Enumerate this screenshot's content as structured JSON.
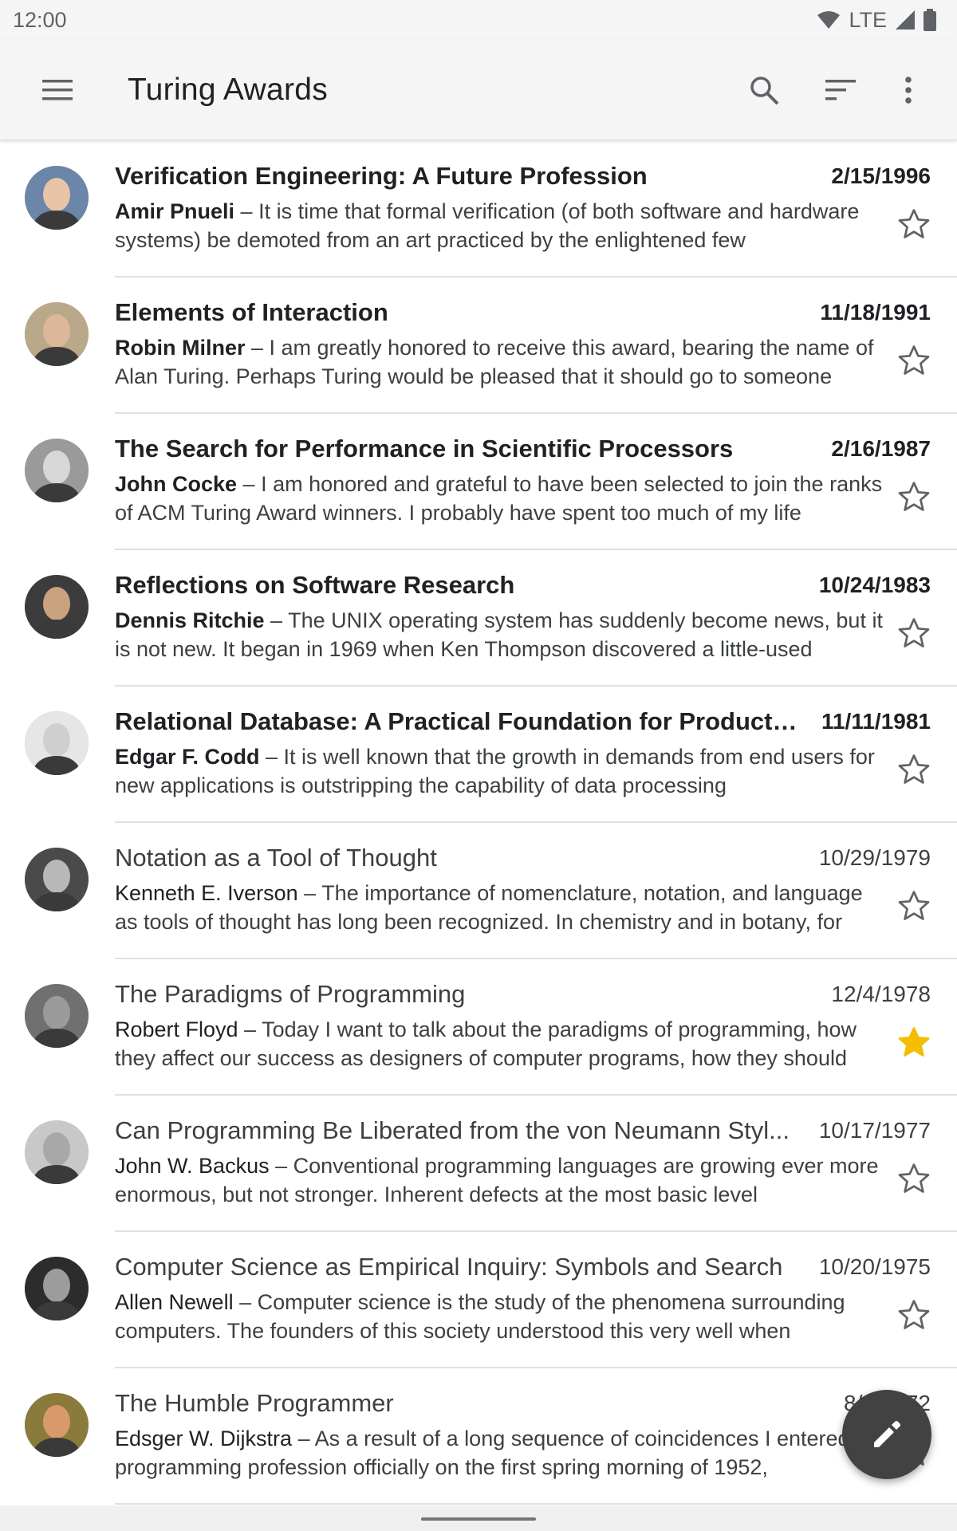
{
  "status_bar": {
    "time": "12:00",
    "network": "LTE",
    "icons": [
      "wifi-icon",
      "signal-icon",
      "battery-icon"
    ]
  },
  "app_bar": {
    "title": "Turing Awards",
    "icons": [
      "menu-icon",
      "search-icon",
      "sort-icon",
      "more-vert-icon"
    ]
  },
  "colors": {
    "star_active": "#f5bd00",
    "fab": "#424242",
    "divider": "#e0e0e0"
  },
  "items": [
    {
      "title": "Verification Engineering: A Future Profession",
      "date": "2/15/1996",
      "sender": "Amir Pnueli",
      "snippet": "It is time that formal verification (of both software and hardware systems) be demoted from an art practiced by the enlightened few",
      "unread": true,
      "starred": false
    },
    {
      "title": "Elements of Interaction",
      "date": "11/18/1991",
      "sender": "Robin Milner",
      "snippet": "I am greatly honored to receive this award, bearing the name of Alan Turing. Perhaps Turing would be pleased that it should go to someone",
      "unread": true,
      "starred": false
    },
    {
      "title": "The Search for Performance in Scientific Processors",
      "date": "2/16/1987",
      "sender": "John Cocke",
      "snippet": "I am honored and grateful to have been selected to join the ranks of ACM Turing Award winners. I probably have spent too much of my life",
      "unread": true,
      "starred": false
    },
    {
      "title": "Reflections on Software Research",
      "date": "10/24/1983",
      "sender": "Dennis Ritchie",
      "snippet": "The UNIX operating system has suddenly become news, but it is not new. It began in 1969 when Ken Thompson discovered a little-used",
      "unread": true,
      "starred": false
    },
    {
      "title": "Relational Database: A Practical Foundation for Productivity",
      "date": "11/11/1981",
      "sender": "Edgar F. Codd",
      "snippet": "It is well known that the growth in demands from end users for new applications is outstripping the capability of data processing",
      "unread": true,
      "starred": false
    },
    {
      "title": "Notation as a Tool of Thought",
      "date": "10/29/1979",
      "sender": "Kenneth E. Iverson",
      "snippet": "The importance of nomenclature, notation, and language as tools of thought has long been recognized. In chemistry and in botany, for",
      "unread": false,
      "starred": false
    },
    {
      "title": "The Paradigms of Programming",
      "date": "12/4/1978",
      "sender": "Robert Floyd",
      "snippet": "Today I want to talk about the paradigms of programming, how they affect our success as designers of computer programs, how they should",
      "unread": false,
      "starred": true
    },
    {
      "title": "Can Programming Be Liberated from the von Neumann Styl...",
      "date": "10/17/1977",
      "sender": "John W. Backus",
      "snippet": "Conventional programming languages are growing ever more enormous, but not stronger. Inherent defects at the most basic level",
      "unread": false,
      "starred": false
    },
    {
      "title": "Computer Science as Empirical Inquiry: Symbols and Search",
      "date": "10/20/1975",
      "sender": "Allen Newell",
      "snippet": "Computer science is the study of the phenomena surrounding computers. The founders of this society understood this very well when",
      "unread": false,
      "starred": false
    },
    {
      "title": "The Humble Programmer",
      "date": "8/6/1972",
      "sender": "Edsger W. Dijkstra",
      "snippet": "As a result of a long sequence of coincidences I entered the programming profession officially on the first spring morning of 1952,",
      "unread": false,
      "starred": false
    }
  ],
  "fab": {
    "icon": "edit-icon"
  }
}
